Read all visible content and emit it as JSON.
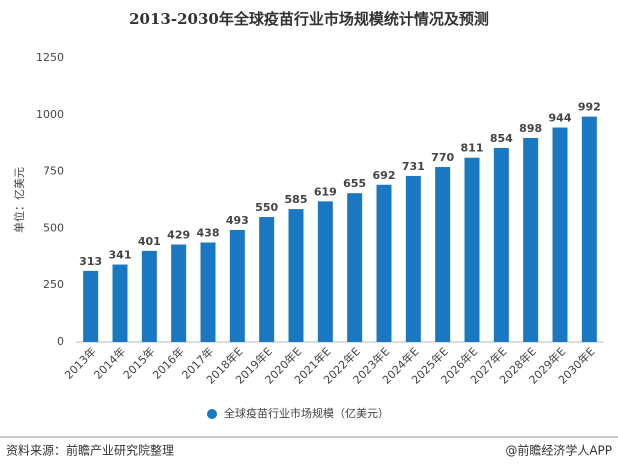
{
  "chart_data": {
    "type": "bar",
    "title": "2013-2030年全球疫苗行业市场规模统计情况及预测",
    "y_label": "单位：亿美元",
    "categories": [
      "2013年",
      "2014年",
      "2015年",
      "2016年",
      "2017年",
      "2018年E",
      "2019年E",
      "2020年E",
      "2021年E",
      "2022年E",
      "2023年E",
      "2024年E",
      "2025年E",
      "2026年E",
      "2027年E",
      "2028年E",
      "2029年E",
      "2030年E"
    ],
    "series": [
      {
        "name": "全球疫苗行业市场规模（亿美元）",
        "color": "#1a78c2",
        "values": [
          313,
          341,
          401,
          429,
          438,
          493,
          550,
          585,
          619,
          655,
          692,
          731,
          770,
          811,
          854,
          898,
          944,
          992
        ]
      }
    ],
    "ylim": [
      0,
      1250
    ],
    "yticks": [
      0,
      250,
      500,
      750,
      1000,
      1250
    ],
    "grid": false,
    "legend": "bottom"
  },
  "footer": {
    "source": "资料来源：前瞻产业研究院整理",
    "brand": "@前瞻经济学人APP"
  }
}
